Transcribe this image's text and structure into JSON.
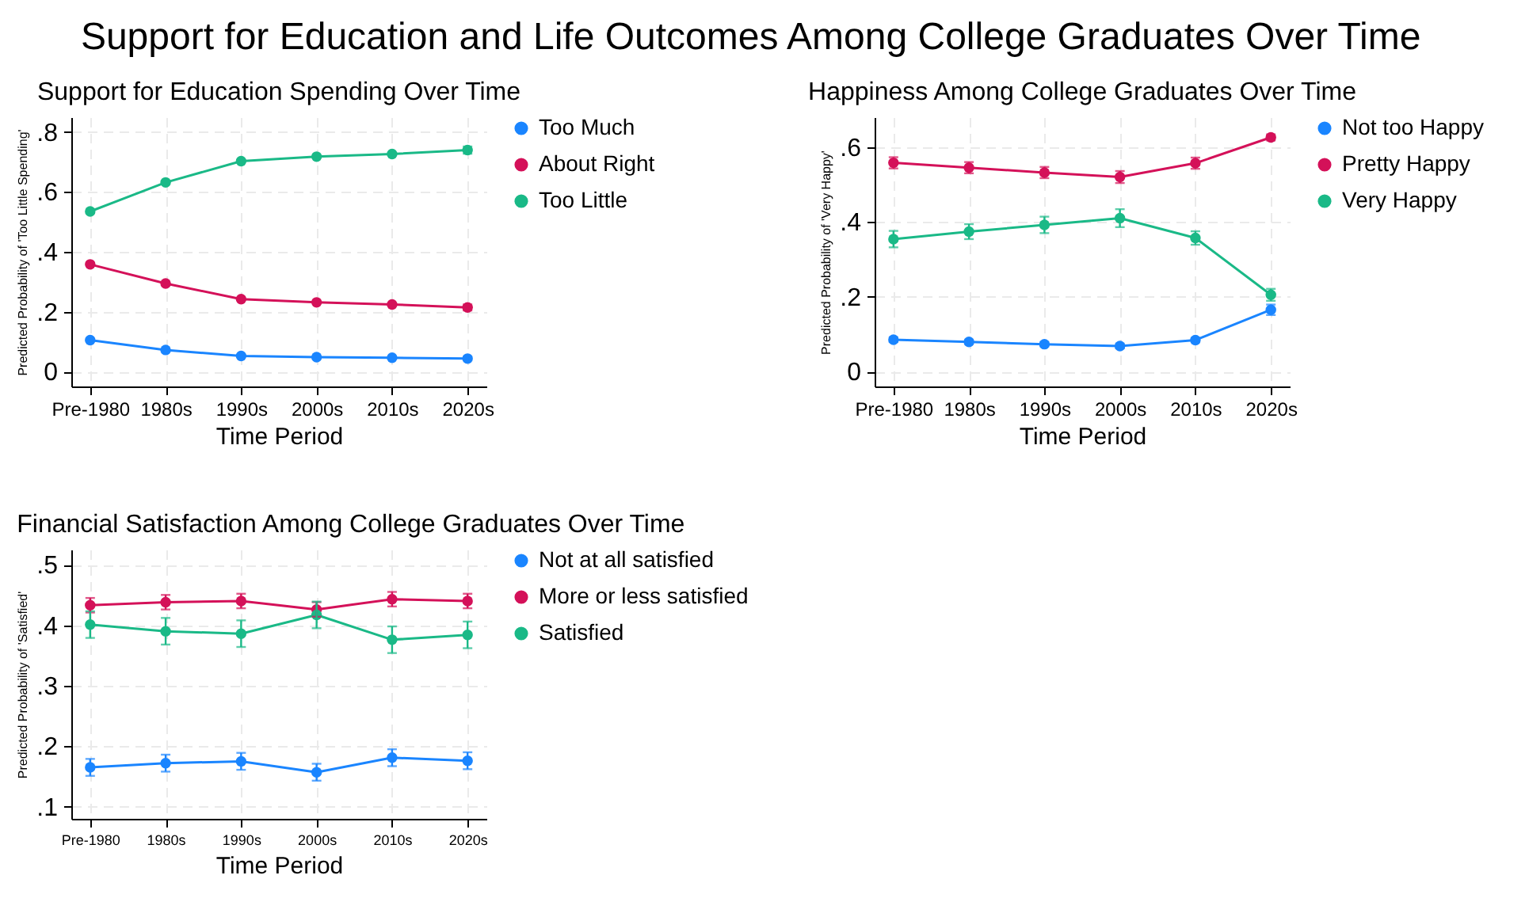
{
  "chart_data": [
    {
      "type": "line",
      "title": "Support for Education Spending Over Time",
      "annotations": [
        "Support for Education and Life Outcomes Among College Graduates Over Time"
      ],
      "xlabel": "Time Period",
      "ylabel": "Predicted Probability of 'Too Little Spending'",
      "categories": [
        "Pre-1980",
        "1980s",
        "1990s",
        "2000s",
        "2010s",
        "2020s"
      ],
      "ylim": [
        -0.05,
        0.85
      ],
      "yticks": [
        0,
        {
          "value": 0.2,
          "label": ".2"
        },
        {
          "value": 0.4,
          "label": ".4"
        },
        {
          "value": 0.6,
          "label": ".6"
        },
        {
          "value": 0.8,
          "label": ".8"
        }
      ],
      "grid": true,
      "legend": "right",
      "marker": "circle",
      "line_style": "solid",
      "series": [
        {
          "name": "Too Much",
          "color": "#1a85ff",
          "values": [
            0.105,
            0.072,
            0.052,
            0.048,
            0.046,
            0.043
          ],
          "errors": [
            null,
            null,
            null,
            null,
            null,
            0.006
          ]
        },
        {
          "name": "About Right",
          "color": "#d41159",
          "values": [
            0.358,
            0.294,
            0.242,
            0.231,
            0.224,
            0.214
          ],
          "errors": [
            null,
            null,
            null,
            null,
            null,
            0.01
          ]
        },
        {
          "name": "Too Little",
          "color": "#1ab987",
          "values": [
            0.535,
            0.632,
            0.703,
            0.718,
            0.727,
            0.74
          ],
          "errors": [
            null,
            null,
            null,
            null,
            null,
            0.012
          ]
        }
      ]
    },
    {
      "type": "line",
      "title": "Happiness Among College Graduates Over Time",
      "xlabel": "Time Period",
      "ylabel": "Predicted Probability of 'Very Happy'",
      "categories": [
        "Pre-1980",
        "1980s",
        "1990s",
        "2000s",
        "2010s",
        "2020s"
      ],
      "ylim": [
        -0.04,
        0.68
      ],
      "yticks": [
        0,
        {
          "value": 0.2,
          "label": ".2"
        },
        {
          "value": 0.4,
          "label": ".4"
        },
        {
          "value": 0.6,
          "label": ".6"
        }
      ],
      "grid": true,
      "legend": "right",
      "marker": "circle",
      "line_style": "solid",
      "series": [
        {
          "name": "Not too Happy",
          "color": "#1a85ff",
          "values": [
            0.085,
            0.079,
            0.073,
            0.068,
            0.084,
            0.165
          ],
          "errors": [
            0.006,
            0.006,
            0.006,
            0.006,
            0.006,
            0.014
          ]
        },
        {
          "name": "Pretty Happy",
          "color": "#d41159",
          "values": [
            0.558,
            0.545,
            0.532,
            0.52,
            0.557,
            0.626
          ],
          "errors": [
            0.015,
            0.015,
            0.015,
            0.016,
            0.015,
            0.008
          ]
        },
        {
          "name": "Very Happy",
          "color": "#1ab987",
          "values": [
            0.354,
            0.374,
            0.392,
            0.41,
            0.357,
            0.205
          ],
          "errors": [
            0.022,
            0.02,
            0.022,
            0.024,
            0.018,
            0.016
          ]
        }
      ]
    },
    {
      "type": "line",
      "title": "Financial Satisfaction Among College Graduates Over Time",
      "xlabel": "Time Period",
      "ylabel": "Predicted Probability of 'Satisfied'",
      "categories": [
        "Pre-1980",
        "1980s",
        "1990s",
        "2000s",
        "2010s",
        "2020s"
      ],
      "ylim": [
        0.08,
        0.525
      ],
      "yticks": [
        {
          "value": 0.1,
          "label": ".1"
        },
        {
          "value": 0.2,
          "label": ".2"
        },
        {
          "value": 0.3,
          "label": ".3"
        },
        {
          "value": 0.4,
          "label": ".4"
        },
        {
          "value": 0.5,
          "label": ".5"
        }
      ],
      "grid": true,
      "legend": "right",
      "marker": "circle",
      "line_style": "solid",
      "series": [
        {
          "name": "Not at all satisfied",
          "color": "#1a85ff",
          "values": [
            0.165,
            0.172,
            0.175,
            0.157,
            0.181,
            0.176
          ],
          "errors": [
            0.014,
            0.014,
            0.014,
            0.014,
            0.014,
            0.014
          ]
        },
        {
          "name": "More or less satisfied",
          "color": "#d41159",
          "values": [
            0.433,
            0.438,
            0.44,
            0.426,
            0.443,
            0.44
          ],
          "errors": [
            0.012,
            0.012,
            0.012,
            0.012,
            0.012,
            0.012
          ]
        },
        {
          "name": "Satisfied",
          "color": "#1ab987",
          "values": [
            0.401,
            0.39,
            0.386,
            0.417,
            0.376,
            0.384
          ],
          "errors": [
            0.022,
            0.022,
            0.022,
            0.022,
            0.022,
            0.022
          ]
        }
      ]
    }
  ]
}
